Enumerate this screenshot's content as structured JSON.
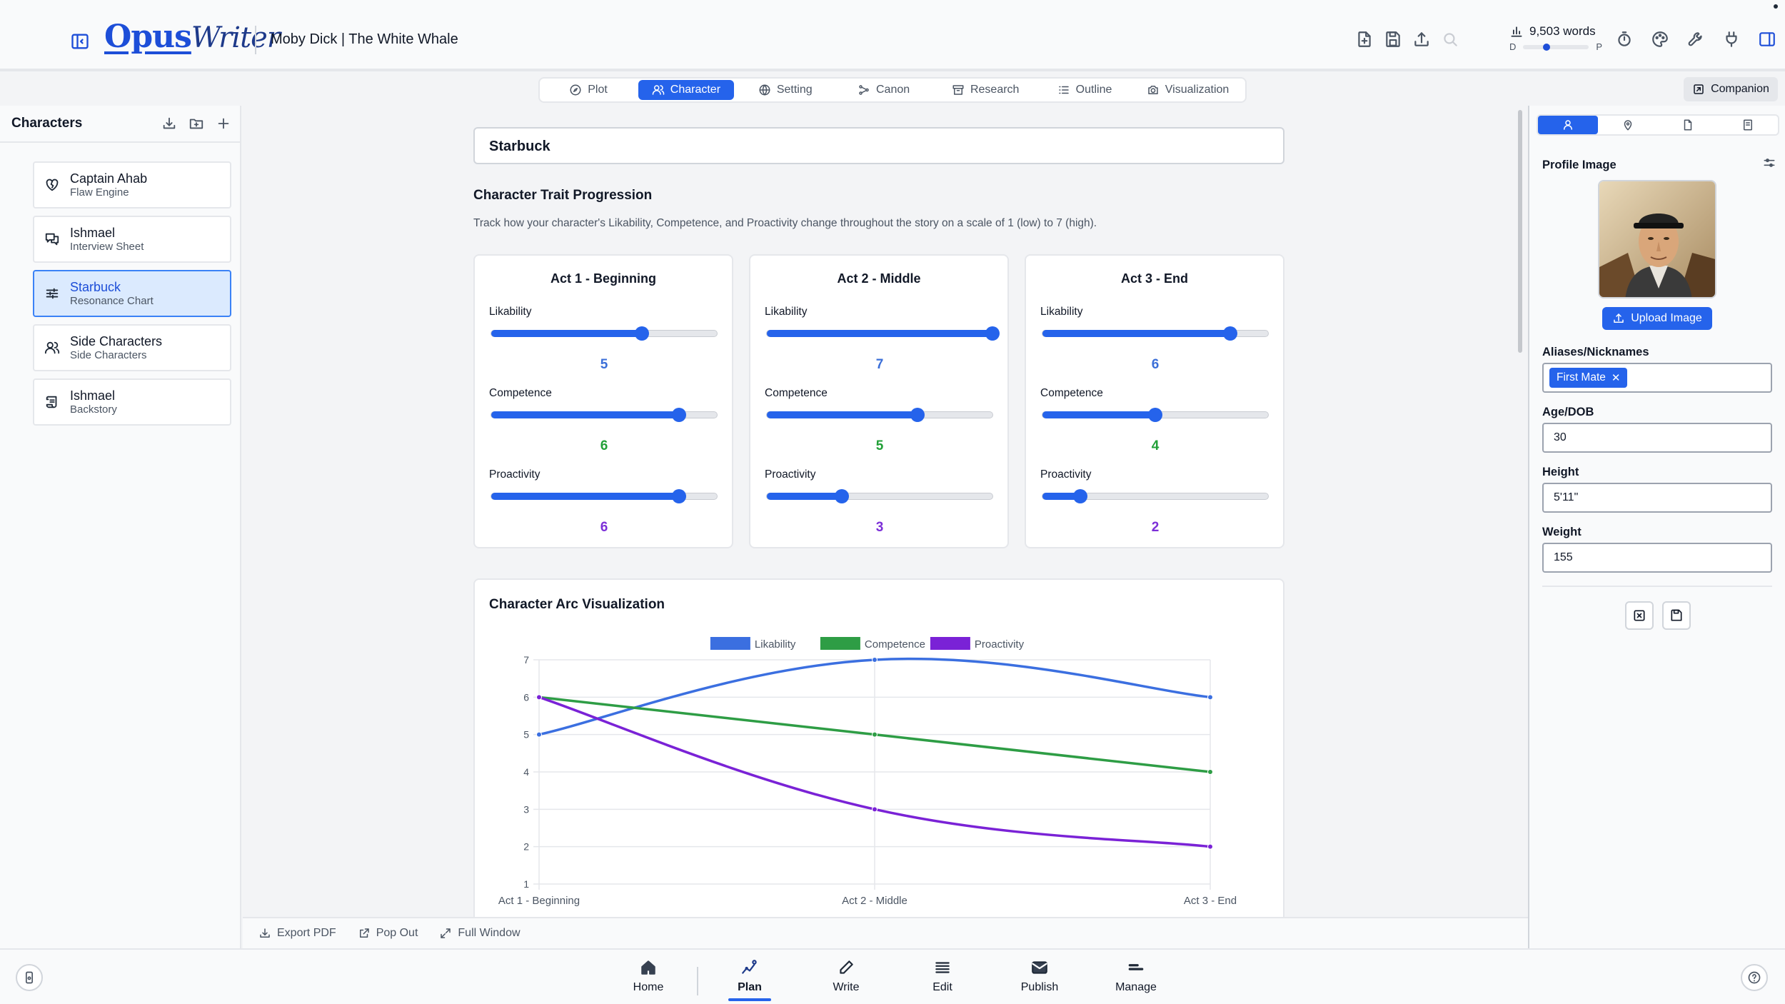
{
  "header": {
    "logo_part1": "Opus",
    "logo_part2": "Writer",
    "doc_title": "Moby Dick | The White Whale",
    "word_count": "9,503 words",
    "progress_left": "D",
    "progress_right": "P",
    "progress_value": 0.35
  },
  "tabs": [
    {
      "label": "Plot",
      "icon": "compass-icon"
    },
    {
      "label": "Character",
      "icon": "users-icon",
      "active": true
    },
    {
      "label": "Setting",
      "icon": "globe-icon"
    },
    {
      "label": "Canon",
      "icon": "share-icon"
    },
    {
      "label": "Research",
      "icon": "archive-icon"
    },
    {
      "label": "Outline",
      "icon": "list-icon"
    },
    {
      "label": "Visualization",
      "icon": "camera-icon"
    }
  ],
  "companion_label": "Companion",
  "sidebar": {
    "title": "Characters",
    "items": [
      {
        "name": "Captain Ahab",
        "sub": "Flaw Engine",
        "icon": "heart-crack-icon"
      },
      {
        "name": "Ishmael",
        "sub": "Interview Sheet",
        "icon": "chat-icon"
      },
      {
        "name": "Starbuck",
        "sub": "Resonance Chart",
        "icon": "sliders-icon",
        "active": true
      },
      {
        "name": "Side Characters",
        "sub": "Side Characters",
        "icon": "users-icon"
      },
      {
        "name": "Ishmael",
        "sub": "Backstory",
        "icon": "scroll-icon"
      }
    ]
  },
  "main": {
    "character_name": "Starbuck",
    "section_title": "Character Trait Progression",
    "section_desc": "Track how your character's Likability, Competence, and Proactivity change throughout the story on a scale of 1 (low) to 7 (high).",
    "trait_labels": [
      "Likability",
      "Competence",
      "Proactivity"
    ],
    "acts": [
      {
        "title": "Act 1 - Beginning",
        "likability": 5,
        "competence": 6,
        "proactivity": 6
      },
      {
        "title": "Act 2 - Middle",
        "likability": 7,
        "competence": 5,
        "proactivity": 3
      },
      {
        "title": "Act 3 - End",
        "likability": 6,
        "competence": 4,
        "proactivity": 2
      }
    ],
    "scale": {
      "min": 1,
      "max": 7
    },
    "chart_title": "Character Arc Visualization"
  },
  "chart_data": {
    "type": "line",
    "title": "Character Arc Visualization",
    "categories": [
      "Act 1 - Beginning",
      "Act 2 - Middle",
      "Act 3 - End"
    ],
    "ylim": [
      1,
      7
    ],
    "yticks": [
      1,
      2,
      3,
      4,
      5,
      6,
      7
    ],
    "grid": true,
    "legend": "top-center",
    "series": [
      {
        "name": "Likability",
        "values": [
          5,
          7,
          6
        ],
        "color": "#3b6fe0"
      },
      {
        "name": "Competence",
        "values": [
          6,
          5,
          4
        ],
        "color": "#2e9d45"
      },
      {
        "name": "Proactivity",
        "values": [
          6,
          3,
          2
        ],
        "color": "#7a22d6"
      }
    ]
  },
  "footer": {
    "export_pdf": "Export PDF",
    "pop_out": "Pop Out",
    "full_window": "Full Window"
  },
  "right_panel": {
    "profile_image_label": "Profile Image",
    "upload_label": "Upload Image",
    "aliases_label": "Aliases/Nicknames",
    "alias_chip": "First Mate",
    "age_label": "Age/DOB",
    "age_value": "30",
    "height_label": "Height",
    "height_value": "5'11\"",
    "weight_label": "Weight",
    "weight_value": "155"
  },
  "bottom_nav": [
    {
      "label": "Home",
      "icon": "home-icon"
    },
    {
      "label": "Plan",
      "icon": "plan-icon",
      "active": true
    },
    {
      "label": "Write",
      "icon": "pen-icon"
    },
    {
      "label": "Edit",
      "icon": "edit-lines-icon"
    },
    {
      "label": "Publish",
      "icon": "mail-icon"
    },
    {
      "label": "Manage",
      "icon": "manage-icon"
    }
  ],
  "colors": {
    "accent": "#2563eb",
    "likability": "#3b6fe0",
    "competence": "#2e9d45",
    "proactivity": "#7a22d6"
  }
}
